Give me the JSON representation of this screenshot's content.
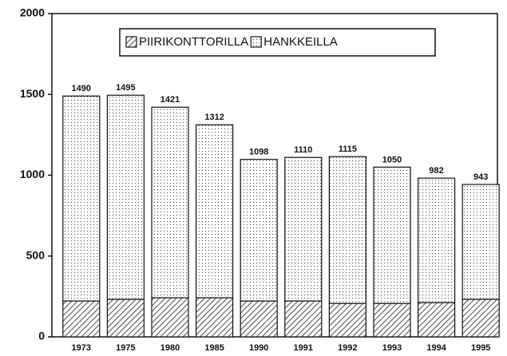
{
  "chart_data": {
    "type": "bar",
    "stacked": true,
    "categories": [
      "1973",
      "1975",
      "1980",
      "1985",
      "1990",
      "1991",
      "1992",
      "1993",
      "1994",
      "1995"
    ],
    "series": [
      {
        "name": "PIIRIKONTTORILLA",
        "values": [
          222,
          232,
          242,
          242,
          222,
          222,
          207,
          207,
          212,
          232
        ]
      },
      {
        "name": "HANKKEILLA",
        "values": [
          1268,
          1263,
          1179,
          1070,
          876,
          888,
          908,
          843,
          770,
          711
        ]
      }
    ],
    "totals": [
      1490,
      1495,
      1421,
      1312,
      1098,
      1110,
      1115,
      1050,
      982,
      943
    ],
    "ylim": [
      0,
      2000
    ],
    "yticks": [
      0,
      500,
      1000,
      1500,
      2000
    ],
    "legend": "top"
  }
}
